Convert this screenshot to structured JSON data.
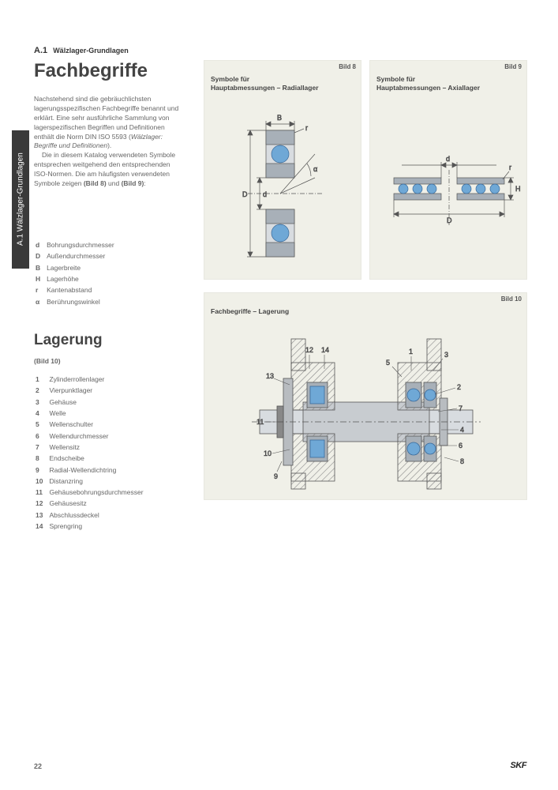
{
  "page": {
    "number": "22",
    "brand": "SKF",
    "section_code": "A.1",
    "section_title": "Wälzlager-Grundlagen",
    "side_tab": "A.1  Wälzlager-Grundlagen"
  },
  "headings": {
    "h1": "Fachbegriffe",
    "h2": "Lagerung",
    "bild_ref": "(Bild 10)"
  },
  "body": {
    "p1": "Nachstehend sind die gebräuchlichsten lagerungsspezifischen Fachbegriffe benannt und erklärt. Eine sehr ausführliche Sammlung von lagerspezifischen Begriffen und Definitionen enthält die Norm DIN ISO 5593 (",
    "p1_italic": "Wälzlager: Begriffe und Definitionen",
    "p1_end": ").",
    "p2": "Die in diesem Katalog verwendeten Symbole entsprechen weitgehend den entsprechenden ISO-Normen. Die am häufigsten verwendeten Symbole zeigen ",
    "p2_bold1": "(Bild 8)",
    "p2_mid": " und ",
    "p2_bold2": "(Bild 9)",
    "p2_end": ":"
  },
  "symbols": [
    {
      "k": "d",
      "v": "Bohrungsdurchmesser"
    },
    {
      "k": "D",
      "v": "Außendurchmesser"
    },
    {
      "k": "B",
      "v": "Lagerbreite"
    },
    {
      "k": "H",
      "v": "Lagerhöhe"
    },
    {
      "k": "r",
      "v": "Kantenabstand"
    },
    {
      "k": "α",
      "v": "Berührungswinkel"
    }
  ],
  "lagerung_items": [
    {
      "n": "1",
      "v": "Zylinderrollenlager"
    },
    {
      "n": "2",
      "v": "Vierpunktlager"
    },
    {
      "n": "3",
      "v": "Gehäuse"
    },
    {
      "n": "4",
      "v": "Welle"
    },
    {
      "n": "5",
      "v": "Wellenschulter"
    },
    {
      "n": "6",
      "v": "Wellendurchmesser"
    },
    {
      "n": "7",
      "v": "Wellensitz"
    },
    {
      "n": "8",
      "v": "Endscheibe"
    },
    {
      "n": "9",
      "v": "Radial-Wellendichtring"
    },
    {
      "n": "10",
      "v": "Distanzring"
    },
    {
      "n": "11",
      "v": "Gehäusebohrungsdurchmesser"
    },
    {
      "n": "12",
      "v": "Gehäusesitz"
    },
    {
      "n": "13",
      "v": "Abschlussdeckel"
    },
    {
      "n": "14",
      "v": "Sprengring"
    }
  ],
  "figures": {
    "f8": {
      "label": "Bild 8",
      "title_l1": "Symbole für",
      "title_l2": "Hauptabmessungen – Radiallager"
    },
    "f9": {
      "label": "Bild 9",
      "title_l1": "Symbole für",
      "title_l2": "Hauptabmessungen – Axiallager"
    },
    "f10": {
      "label": "Bild 10",
      "title": "Fachbegriffe – Lagerung"
    }
  },
  "colors": {
    "panel_bg": "#f0f0e8",
    "steel_light": "#d8dce0",
    "steel_dark": "#a8b0b8",
    "blue": "#6fa8d6",
    "blue_dark": "#3a6a9a",
    "line": "#555555",
    "hatch": "#888888"
  },
  "fig8_dims": {
    "B": "B",
    "D": "D",
    "d": "d",
    "r": "r",
    "alpha": "α"
  },
  "fig9_dims": {
    "D": "D",
    "d": "d",
    "r": "r",
    "H": "H"
  },
  "fig10_labels": [
    "12",
    "14",
    "13",
    "11",
    "10",
    "9",
    "1",
    "3",
    "5",
    "2",
    "7",
    "4",
    "6",
    "8"
  ]
}
